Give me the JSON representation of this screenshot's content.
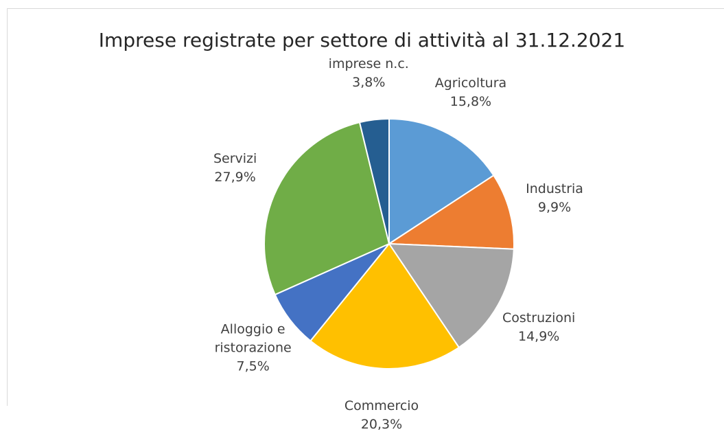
{
  "chart_data": {
    "type": "pie",
    "title": "Imprese registrate per settore di attività al 31.12.2021",
    "categories": [
      "Agricoltura",
      "Industria",
      "Costruzioni",
      "Commercio",
      "Alloggio e ristorazione",
      "Servizi",
      "imprese n.c."
    ],
    "values": [
      15.8,
      9.9,
      14.9,
      20.3,
      7.5,
      27.9,
      3.8
    ],
    "value_labels": [
      "15,8%",
      "9,9%",
      "14,9%",
      "20,3%",
      "7,5%",
      "27,9%",
      "3,8%"
    ],
    "colors": [
      "#5b9bd5",
      "#ed7d31",
      "#a5a5a5",
      "#ffc000",
      "#4472c4",
      "#70ad47",
      "#255e91"
    ]
  }
}
